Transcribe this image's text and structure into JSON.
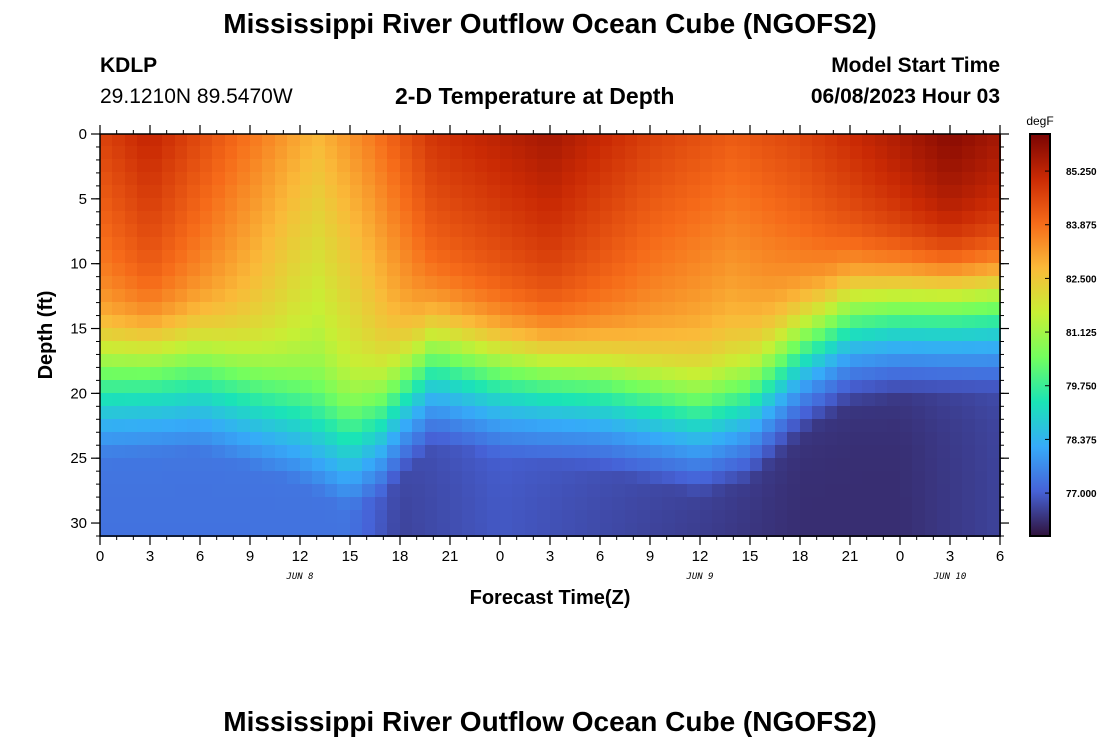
{
  "header": {
    "title": "Mississippi River Outflow Ocean Cube (NGOFS2)",
    "station": "KDLP",
    "coordinates": "29.1210N  89.5470W",
    "subtitle": "2-D Temperature at Depth",
    "model_start_label": "Model Start Time",
    "model_start_value": "06/08/2023 Hour 03"
  },
  "footer": {
    "title": "Mississippi River Outflow Ocean Cube (NGOFS2)"
  },
  "chart_data": {
    "type": "heatmap",
    "title": "2-D Temperature at Depth",
    "xlabel": "Forecast Time(Z)",
    "ylabel": "Depth (ft)",
    "x_hours_range": [
      0,
      54
    ],
    "x_tick_hours": [
      0,
      3,
      6,
      9,
      12,
      15,
      18,
      21,
      24,
      27,
      30,
      33,
      36,
      39,
      42,
      45,
      48,
      51,
      54
    ],
    "x_tick_labels": [
      "0",
      "3",
      "6",
      "9",
      "12",
      "15",
      "18",
      "21",
      "0",
      "3",
      "6",
      "9",
      "12",
      "15",
      "18",
      "21",
      "0",
      "3",
      "6"
    ],
    "day_labels": [
      {
        "hour": 12,
        "label": "JUN 8"
      },
      {
        "hour": 36,
        "label": "JUN 9"
      },
      {
        "hour": 51,
        "label": "JUN 10"
      }
    ],
    "y_range": [
      0,
      31
    ],
    "y_ticks": [
      0,
      5,
      10,
      15,
      20,
      25,
      30
    ],
    "colorbar": {
      "unit": "degF",
      "vmin": 75.9,
      "vmax": 86.2,
      "tick_values": [
        85.25,
        83.875,
        82.5,
        81.125,
        79.75,
        78.375,
        77.0
      ],
      "tick_labels": [
        "85.250",
        "83.875",
        "82.500",
        "81.125",
        "79.750",
        "78.375",
        "77.000"
      ],
      "colors": [
        "#30123b",
        "#4662d7",
        "#36aaf9",
        "#1ae4b6",
        "#72fe5e",
        "#c8ef34",
        "#faba39",
        "#f66b19",
        "#ca2a04",
        "#7a0403"
      ]
    },
    "thermocline_depth_ft": [
      {
        "hour": 0,
        "depth": 17
      },
      {
        "hour": 6,
        "depth": 16.5
      },
      {
        "hour": 12,
        "depth": 19
      },
      {
        "hour": 15,
        "depth": 21
      },
      {
        "hour": 17,
        "depth": 20
      },
      {
        "hour": 20,
        "depth": 16
      },
      {
        "hour": 24,
        "depth": 17
      },
      {
        "hour": 30,
        "depth": 18
      },
      {
        "hour": 36,
        "depth": 20
      },
      {
        "hour": 39,
        "depth": 19
      },
      {
        "hour": 42,
        "depth": 15.5
      },
      {
        "hour": 45,
        "depth": 13
      },
      {
        "hour": 48,
        "depth": 12.5
      },
      {
        "hour": 54,
        "depth": 12
      }
    ],
    "surface_temp_degF": [
      {
        "hour": 0,
        "temp": 84.6
      },
      {
        "hour": 3,
        "temp": 85.2
      },
      {
        "hour": 9,
        "temp": 83.8
      },
      {
        "hour": 13,
        "temp": 82.8
      },
      {
        "hour": 16,
        "temp": 83.6
      },
      {
        "hour": 20,
        "temp": 84.9
      },
      {
        "hour": 24,
        "temp": 85.3
      },
      {
        "hour": 27,
        "temp": 85.6
      },
      {
        "hour": 33,
        "temp": 84.7
      },
      {
        "hour": 38,
        "temp": 84.2
      },
      {
        "hour": 42,
        "temp": 84.6
      },
      {
        "hour": 48,
        "temp": 85.5
      },
      {
        "hour": 51,
        "temp": 86.0
      },
      {
        "hour": 54,
        "temp": 85.6
      }
    ],
    "bottom_temp_degF": [
      {
        "hour": 0,
        "temp": 77.3
      },
      {
        "hour": 15,
        "temp": 77.3
      },
      {
        "hour": 18,
        "temp": 76.6
      },
      {
        "hour": 24,
        "temp": 76.9
      },
      {
        "hour": 42,
        "temp": 76.3
      },
      {
        "hour": 48,
        "temp": 76.3
      },
      {
        "hour": 54,
        "temp": 76.6
      }
    ]
  }
}
